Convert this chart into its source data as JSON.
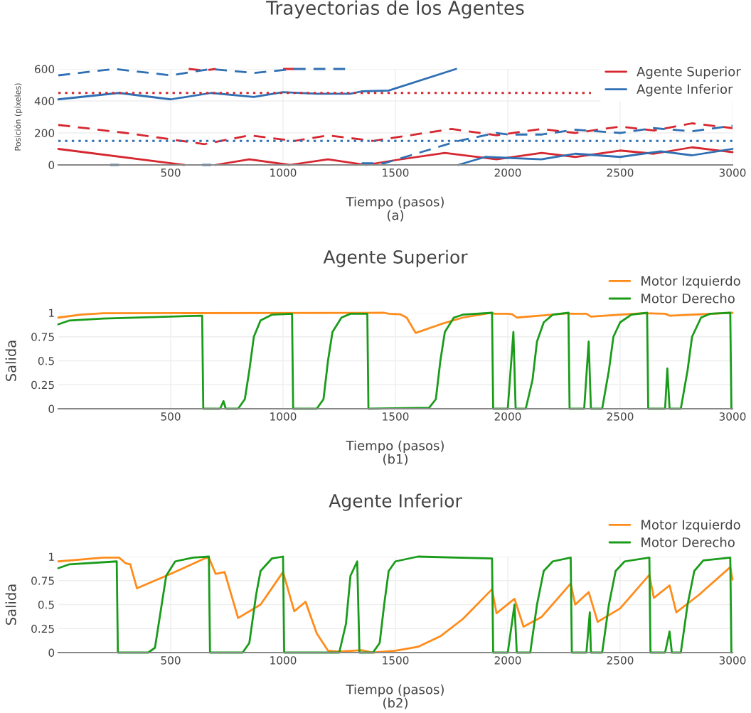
{
  "chart_data": [
    {
      "type": "line",
      "title": "Trayectorias de los Agentes",
      "xlabel": "Tiempo (pasos)\n(a)",
      "ylabel": "Posición (píxeles)",
      "xlim": [
        0,
        3000
      ],
      "xticks": [
        500,
        1000,
        1500,
        2000,
        2500,
        3000
      ],
      "ylim": [
        0,
        600
      ],
      "yticks": [
        0,
        200,
        400,
        600
      ],
      "grid": true,
      "legend": "top right",
      "line_style": "solid",
      "series": [
        {
          "name": "Agente Superior",
          "color": "#d62730",
          "x": [
            0,
            560,
            600,
            700,
            850,
            1030,
            1200,
            1370,
            1500,
            1720,
            1950,
            2150,
            2300,
            2500,
            2650,
            2820,
            3000
          ],
          "values": [
            100,
            0,
            null,
            0,
            35,
            0,
            35,
            0,
            30,
            75,
            35,
            75,
            50,
            90,
            70,
            110,
            80
          ]
        },
        {
          "name": "Agente Inferior",
          "color": "#2f6fb3",
          "x": [
            0,
            270,
            500,
            680,
            870,
            1000,
            1150,
            1300,
            1350,
            1470,
            1770
          ],
          "values": [
            410,
            450,
            410,
            450,
            425,
            455,
            445,
            445,
            460,
            465,
            600
          ]
        },
        {
          "color": "#2f6fb3",
          "x": [
            1780,
            1900,
            2150,
            2300,
            2500,
            2680,
            2820,
            3000
          ],
          "values": [
            0,
            50,
            35,
            70,
            50,
            85,
            60,
            100
          ]
        },
        {
          "color": "#d62730",
          "line_style": "dashed",
          "x": [
            0,
            300,
            600,
            650,
            850,
            1050,
            1200,
            1400,
            1750,
            1950,
            2150,
            2300,
            2500,
            2650,
            2820,
            3000
          ],
          "values": [
            250,
            200,
            140,
            130,
            185,
            150,
            185,
            150,
            225,
            185,
            225,
            200,
            240,
            215,
            260,
            230
          ]
        },
        {
          "color": "#d62730",
          "line_style": "dashed",
          "x": [
            580,
            650,
            700,
            750,
            1000,
            1050
          ],
          "values": [
            600,
            590,
            600,
            null,
            600,
            600
          ]
        },
        {
          "color": "#2f6fb3",
          "line_style": "dashed",
          "x": [
            0,
            250,
            500,
            680,
            870,
            1050,
            1300
          ],
          "values": [
            560,
            600,
            560,
            600,
            575,
            600,
            600
          ]
        },
        {
          "color": "#2f6fb3",
          "line_style": "dashed",
          "x": [
            230,
            270,
            450,
            640,
            680,
            1000,
            1350,
            1450,
            1780,
            1950,
            2000,
            2150,
            2300,
            2500,
            2650,
            2820,
            3000
          ],
          "values": [
            0,
            0,
            null,
            0,
            0,
            null,
            10,
            10,
            150,
            200,
            190,
            190,
            220,
            200,
            230,
            210,
            245
          ]
        },
        {
          "color": "#d62730",
          "line_style": "dotted",
          "x": [
            0,
            2370
          ],
          "values": [
            450,
            450
          ]
        },
        {
          "color": "#2f6fb3",
          "line_style": "dotted",
          "x": [
            0,
            3000
          ],
          "values": [
            150,
            150
          ]
        }
      ]
    },
    {
      "type": "line",
      "title": "Agente Superior",
      "xlabel": "Tiempo (pasos)\n(b1)",
      "ylabel": "Salida",
      "xlim": [
        0,
        3000
      ],
      "xticks": [
        500,
        1000,
        1500,
        2000,
        2500,
        3000
      ],
      "ylim": [
        0,
        1
      ],
      "yticks": [
        0,
        0.25,
        0.5,
        0.75,
        1
      ],
      "grid": true,
      "legend": "top right",
      "line_style": "solid",
      "series": [
        {
          "name": "Motor Izquierdo",
          "color": "#ff8c1a",
          "x": [
            0,
            100,
            200,
            1450,
            1470,
            1520,
            1550,
            1590,
            1700,
            1800,
            1930,
            1940,
            2000,
            2020,
            2040,
            2270,
            2280,
            2350,
            2370,
            2600,
            2700,
            2720,
            3000
          ],
          "values": [
            0.95,
            0.98,
            0.995,
            1.0,
            0.99,
            0.985,
            0.95,
            0.79,
            0.88,
            0.95,
            1.0,
            0.99,
            0.99,
            0.985,
            0.95,
            0.995,
            0.99,
            0.99,
            0.96,
            0.995,
            0.99,
            0.97,
            1.0
          ]
        },
        {
          "name": "Motor Derecho",
          "color": "#1a9c1a",
          "x": [
            0,
            50,
            200,
            640,
            645,
            720,
            735,
            745,
            800,
            830,
            850,
            870,
            900,
            950,
            1040,
            1045,
            1150,
            1180,
            1200,
            1220,
            1260,
            1300,
            1375,
            1380,
            1650,
            1680,
            1700,
            1720,
            1760,
            1800,
            1930,
            1935,
            2000,
            2025,
            2035,
            2080,
            2110,
            2130,
            2160,
            2200,
            2270,
            2275,
            2340,
            2360,
            2370,
            2420,
            2450,
            2470,
            2500,
            2550,
            2620,
            2625,
            2700,
            2710,
            2720,
            2770,
            2800,
            2820,
            2860,
            2900,
            2990,
            2995
          ],
          "values": [
            0.88,
            0.92,
            0.94,
            0.97,
            0,
            0,
            0.08,
            0,
            0,
            0.1,
            0.4,
            0.75,
            0.92,
            0.98,
            0.99,
            0,
            0,
            0.1,
            0.5,
            0.8,
            0.95,
            0.99,
            0.99,
            0,
            0.01,
            0.1,
            0.5,
            0.8,
            0.95,
            0.98,
            1.0,
            0,
            0,
            0.8,
            0,
            0,
            0.3,
            0.7,
            0.9,
            0.98,
            1.0,
            0,
            0,
            0.7,
            0,
            0,
            0.4,
            0.75,
            0.9,
            0.98,
            1.0,
            0,
            0,
            0.42,
            0,
            0,
            0.4,
            0.75,
            0.95,
            0.99,
            1.0,
            0
          ]
        }
      ]
    },
    {
      "type": "line",
      "title": "Agente Inferior",
      "xlabel": "Tiempo (pasos)\n(b2)",
      "ylabel": "Salida",
      "xlim": [
        0,
        3000
      ],
      "xticks": [
        500,
        1000,
        1500,
        2000,
        2500,
        3000
      ],
      "ylim": [
        0,
        1
      ],
      "yticks": [
        0,
        0.25,
        0.5,
        0.75,
        1
      ],
      "grid": true,
      "legend": "top right",
      "line_style": "solid",
      "series": [
        {
          "name": "Motor Izquierdo",
          "color": "#ff8c1a",
          "x": [
            0,
            100,
            200,
            270,
            300,
            320,
            350,
            500,
            650,
            670,
            700,
            740,
            800,
            900,
            1000,
            1050,
            1100,
            1150,
            1200,
            1250,
            1350,
            1400,
            1500,
            1600,
            1700,
            1800,
            1930,
            1950,
            2030,
            2070,
            2150,
            2280,
            2300,
            2360,
            2400,
            2500,
            2630,
            2650,
            2720,
            2750,
            2850,
            2990,
            3000
          ],
          "values": [
            0.95,
            0.97,
            0.99,
            0.99,
            0.93,
            0.92,
            0.67,
            0.82,
            0.98,
            0.99,
            0.82,
            0.84,
            0.36,
            0.5,
            0.84,
            0.43,
            0.53,
            0.2,
            0.02,
            0.01,
            0.025,
            0.0,
            0.02,
            0.06,
            0.17,
            0.35,
            0.66,
            0.41,
            0.56,
            0.27,
            0.37,
            0.72,
            0.5,
            0.63,
            0.32,
            0.46,
            0.81,
            0.57,
            0.7,
            0.42,
            0.6,
            0.89,
            0.76
          ]
        },
        {
          "name": "Motor Derecho",
          "color": "#1a9c1a",
          "x": [
            0,
            50,
            260,
            265,
            400,
            430,
            460,
            480,
            520,
            600,
            670,
            675,
            820,
            850,
            880,
            900,
            950,
            1000,
            1005,
            1250,
            1280,
            1300,
            1330,
            1340,
            1400,
            1430,
            1450,
            1470,
            1500,
            1600,
            1930,
            1935,
            2000,
            2030,
            2040,
            2100,
            2130,
            2160,
            2200,
            2280,
            2285,
            2350,
            2365,
            2370,
            2420,
            2450,
            2480,
            2520,
            2630,
            2635,
            2700,
            2720,
            2730,
            2770,
            2800,
            2830,
            2870,
            2990,
            2995
          ],
          "values": [
            0.88,
            0.92,
            0.95,
            0,
            0,
            0.05,
            0.5,
            0.8,
            0.95,
            0.99,
            1.0,
            0,
            0,
            0.1,
            0.6,
            0.85,
            0.98,
            1.0,
            0,
            0,
            0.3,
            0.8,
            0.95,
            0,
            0,
            0.1,
            0.5,
            0.85,
            0.95,
            1.0,
            0.98,
            0,
            0,
            0.5,
            0,
            0,
            0.5,
            0.85,
            0.95,
            0.99,
            0,
            0,
            0.42,
            0,
            0,
            0.5,
            0.85,
            0.95,
            0.99,
            0,
            0,
            0.22,
            0,
            0,
            0.5,
            0.85,
            0.96,
            0.99,
            0
          ]
        }
      ]
    }
  ]
}
